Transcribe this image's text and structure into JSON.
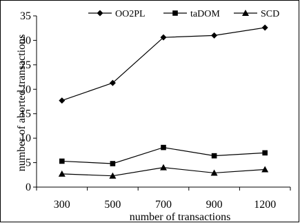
{
  "chart_data": {
    "type": "line",
    "title": "",
    "xlabel": "number of transactions",
    "ylabel": "number of aborted transactions",
    "categories": [
      "300",
      "500",
      "700",
      "900",
      "1200"
    ],
    "ylim": [
      0,
      35
    ],
    "yticks": [
      "0",
      "5",
      "10",
      "15",
      "20",
      "25",
      "30",
      "35"
    ],
    "grid": false,
    "legend_position": "top",
    "series": [
      {
        "name": "OO2PL",
        "marker": "diamond",
        "values": [
          17.7,
          21.3,
          30.6,
          31.0,
          32.6
        ]
      },
      {
        "name": "taDOM",
        "marker": "square",
        "values": [
          5.3,
          4.8,
          8.1,
          6.4,
          7.0
        ]
      },
      {
        "name": "SCD",
        "marker": "triangle",
        "values": [
          2.7,
          2.3,
          4.0,
          2.9,
          3.6
        ]
      }
    ]
  }
}
